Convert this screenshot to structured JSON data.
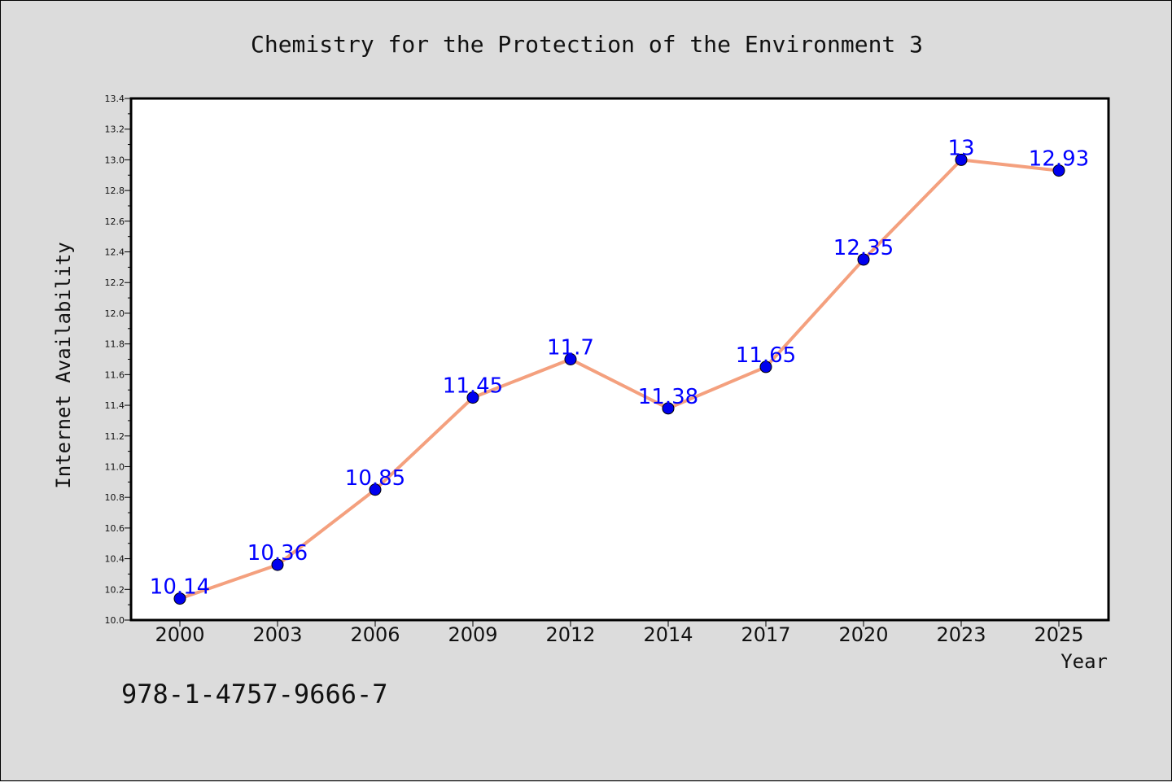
{
  "chart_data": {
    "type": "line",
    "title": "Chemistry for the Protection of the Environment 3",
    "xlabel": "Year",
    "ylabel": "Internet Availability",
    "categories": [
      "2000",
      "2003",
      "2006",
      "2009",
      "2012",
      "2014",
      "2017",
      "2020",
      "2023",
      "2025"
    ],
    "values": [
      10.14,
      10.36,
      10.85,
      11.45,
      11.7,
      11.38,
      11.65,
      12.35,
      13,
      12.93
    ],
    "data_labels": [
      "10.14",
      "10.36",
      "10.85",
      "11.45",
      "11.7",
      "11.38",
      "11.65",
      "12.35",
      "13",
      "12.93"
    ],
    "ylim": [
      10.0,
      13.4
    ],
    "yticks": [
      "10.0",
      "10.2",
      "10.4",
      "10.6",
      "10.8",
      "11.0",
      "11.2",
      "11.4",
      "11.6",
      "11.8",
      "12.0",
      "12.2",
      "12.4",
      "12.6",
      "12.8",
      "13.0",
      "13.2",
      "13.4"
    ],
    "grid": false,
    "colors": {
      "line": "#f4a07e",
      "marker": "#0000ee",
      "label": "#0000ff"
    }
  },
  "footer_text": "978-1-4757-9666-7"
}
